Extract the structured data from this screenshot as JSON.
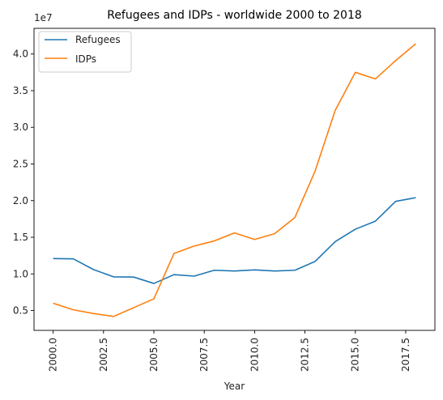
{
  "chart_data": {
    "type": "line",
    "title": "Refugees and IDPs - worldwide 2000 to 2018",
    "xlabel": "Year",
    "ylabel": "",
    "y_offset_label": "1e7",
    "x": [
      2000,
      2001,
      2002,
      2003,
      2004,
      2005,
      2006,
      2007,
      2008,
      2009,
      2010,
      2011,
      2012,
      2013,
      2014,
      2015,
      2016,
      2017,
      2018
    ],
    "x_ticks": [
      "2000.0",
      "2002.5",
      "2005.0",
      "2007.5",
      "2010.0",
      "2012.5",
      "2015.0",
      "2017.5"
    ],
    "y_ticks": [
      "0.5",
      "1.0",
      "1.5",
      "2.0",
      "2.5",
      "3.0",
      "3.5",
      "4.0"
    ],
    "xlim": [
      1999.05,
      2018.95
    ],
    "ylim": [
      2300000,
      43500000
    ],
    "grid": false,
    "legend_position": "top-left",
    "series": [
      {
        "name": "Refugees",
        "color": "#1f77b4",
        "values": [
          12100000,
          12050000,
          10600000,
          9600000,
          9570000,
          8700000,
          9900000,
          9700000,
          10500000,
          10400000,
          10550000,
          10400000,
          10500000,
          11700000,
          14400000,
          16100000,
          17200000,
          19900000,
          20400000
        ]
      },
      {
        "name": "IDPs",
        "color": "#ff7f0e",
        "values": [
          6000000,
          5100000,
          4600000,
          4200000,
          5400000,
          6600000,
          12800000,
          13800000,
          14500000,
          15600000,
          14700000,
          15500000,
          17700000,
          24000000,
          32300000,
          37500000,
          36600000,
          39100000,
          41400000
        ]
      }
    ]
  }
}
